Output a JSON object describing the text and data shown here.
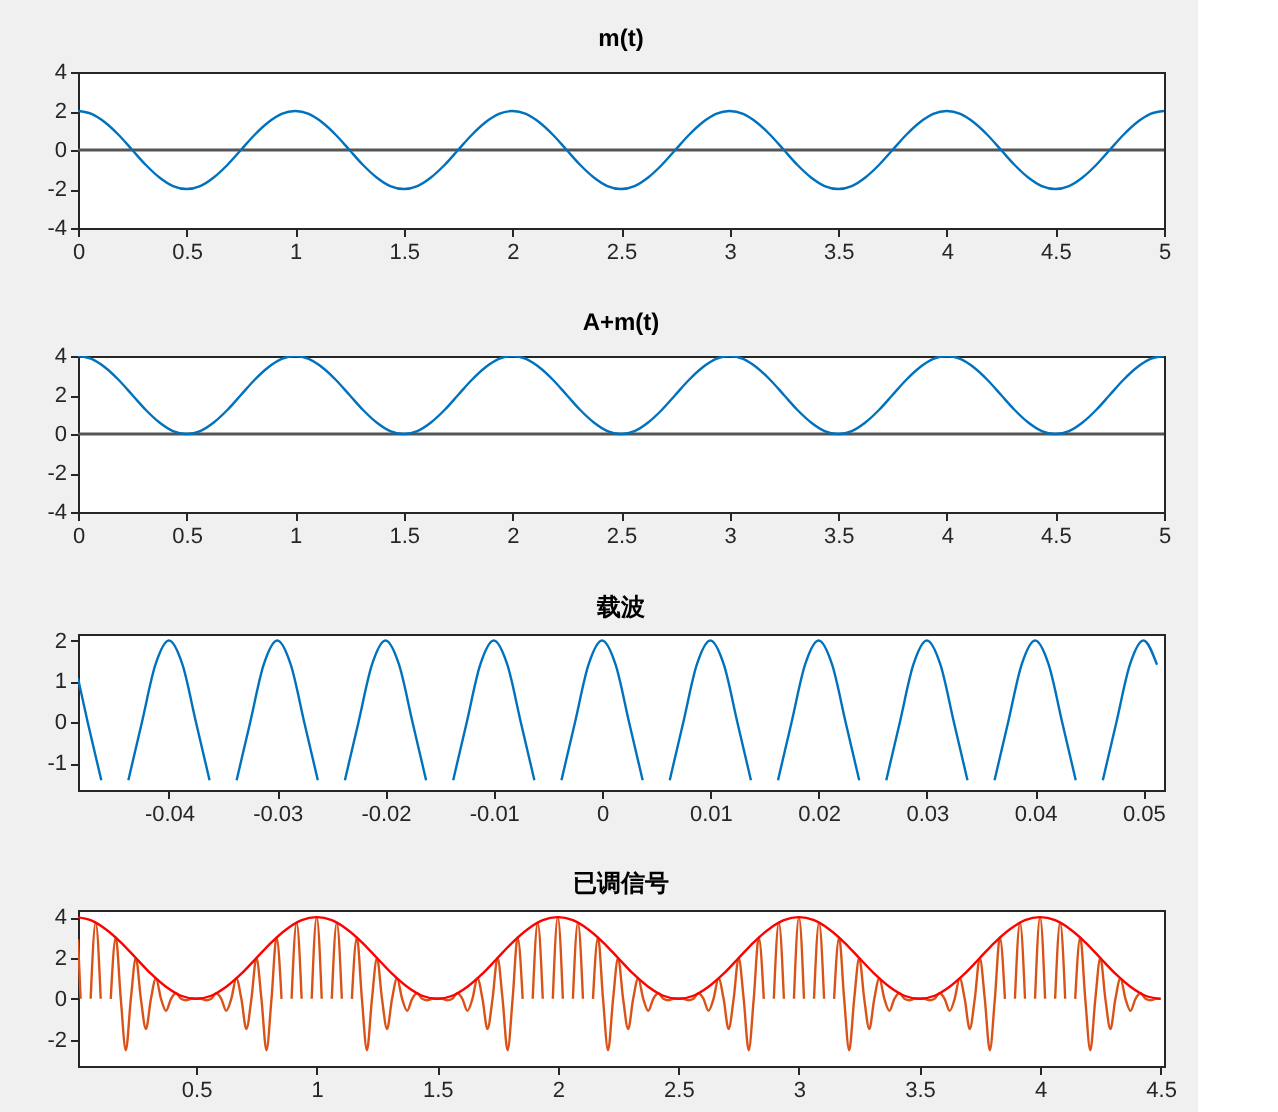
{
  "chart_data": [
    {
      "type": "line",
      "title": "m(t)",
      "xlim": [
        0,
        5
      ],
      "ylim": [
        -4,
        4
      ],
      "xticks": [
        0,
        0.5,
        1,
        1.5,
        2,
        2.5,
        3,
        3.5,
        4,
        4.5,
        5
      ],
      "yticks": [
        -4,
        -2,
        0,
        2,
        4
      ],
      "grid": false,
      "x": [
        0,
        0.0625,
        0.125,
        0.1875,
        0.25,
        0.3125,
        0.375,
        0.4375,
        0.5,
        0.5625,
        0.625,
        0.6875,
        0.75,
        0.8125,
        0.875,
        0.9375,
        1,
        1.0625,
        1.125,
        1.1875,
        1.25,
        1.3125,
        1.375,
        1.4375,
        1.5,
        1.5625,
        1.625,
        1.6875,
        1.75,
        1.8125,
        1.875,
        1.9375,
        2,
        2.0625,
        2.125,
        2.1875,
        2.25,
        2.3125,
        2.375,
        2.4375,
        2.5,
        2.5625,
        2.625,
        2.6875,
        2.75,
        2.8125,
        2.875,
        2.9375,
        3,
        3.0625,
        3.125,
        3.1875,
        3.25,
        3.3125,
        3.375,
        3.4375,
        3.5,
        3.5625,
        3.625,
        3.6875,
        3.75,
        3.8125,
        3.875,
        3.9375,
        4,
        4.0625,
        4.125,
        4.1875,
        4.25,
        4.3125,
        4.375,
        4.4375,
        4.5,
        4.5625,
        4.625,
        4.6875,
        4.75,
        4.8125,
        4.875,
        4.9375,
        5
      ],
      "series": [
        {
          "color": "#0072bd",
          "values": [
            2,
            1.85,
            1.41,
            0.77,
            0,
            -0.77,
            -1.41,
            -1.85,
            -2,
            -1.85,
            -1.41,
            -0.77,
            0,
            0.77,
            1.41,
            1.85,
            2,
            1.85,
            1.41,
            0.77,
            0,
            -0.77,
            -1.41,
            -1.85,
            -2,
            -1.85,
            -1.41,
            -0.77,
            0,
            0.77,
            1.41,
            1.85,
            2,
            1.85,
            1.41,
            0.77,
            0,
            -0.77,
            -1.41,
            -1.85,
            -2,
            -1.85,
            -1.41,
            -0.77,
            0,
            0.77,
            1.41,
            1.85,
            2,
            1.85,
            1.41,
            0.77,
            0,
            -0.77,
            -1.41,
            -1.85,
            -2,
            -1.85,
            -1.41,
            -0.77,
            0,
            0.77,
            1.41,
            1.85,
            2,
            1.85,
            1.41,
            0.77,
            0,
            -0.77,
            -1.41,
            -1.85,
            -2,
            -1.85,
            -1.41,
            -0.77,
            0,
            0.77,
            1.41,
            1.85,
            2
          ]
        }
      ],
      "ref_lines": [
        {
          "axis": "y",
          "value": 0,
          "color": "#555555"
        }
      ]
    },
    {
      "type": "line",
      "title": "A+m(t)",
      "xlim": [
        0,
        5
      ],
      "ylim": [
        -4,
        4
      ],
      "xticks": [
        0,
        0.5,
        1,
        1.5,
        2,
        2.5,
        3,
        3.5,
        4,
        4.5,
        5
      ],
      "yticks": [
        -4,
        -2,
        0,
        2,
        4
      ],
      "grid": false,
      "x": [
        0,
        0.0625,
        0.125,
        0.1875,
        0.25,
        0.3125,
        0.375,
        0.4375,
        0.5,
        0.5625,
        0.625,
        0.6875,
        0.75,
        0.8125,
        0.875,
        0.9375,
        1,
        1.0625,
        1.125,
        1.1875,
        1.25,
        1.3125,
        1.375,
        1.4375,
        1.5,
        1.5625,
        1.625,
        1.6875,
        1.75,
        1.8125,
        1.875,
        1.9375,
        2,
        2.0625,
        2.125,
        2.1875,
        2.25,
        2.3125,
        2.375,
        2.4375,
        2.5,
        2.5625,
        2.625,
        2.6875,
        2.75,
        2.8125,
        2.875,
        2.9375,
        3,
        3.0625,
        3.125,
        3.1875,
        3.25,
        3.3125,
        3.375,
        3.4375,
        3.5,
        3.5625,
        3.625,
        3.6875,
        3.75,
        3.8125,
        3.875,
        3.9375,
        4,
        4.0625,
        4.125,
        4.1875,
        4.25,
        4.3125,
        4.375,
        4.4375,
        4.5,
        4.5625,
        4.625,
        4.6875,
        4.75,
        4.8125,
        4.875,
        4.9375,
        5
      ],
      "series": [
        {
          "color": "#0072bd",
          "values": [
            4,
            3.85,
            3.41,
            2.77,
            2,
            1.23,
            0.59,
            0.15,
            0,
            0.15,
            0.59,
            1.23,
            2,
            2.77,
            3.41,
            3.85,
            4,
            3.85,
            3.41,
            2.77,
            2,
            1.23,
            0.59,
            0.15,
            0,
            0.15,
            0.59,
            1.23,
            2,
            2.77,
            3.41,
            3.85,
            4,
            3.85,
            3.41,
            2.77,
            2,
            1.23,
            0.59,
            0.15,
            0,
            0.15,
            0.59,
            1.23,
            2,
            2.77,
            3.41,
            3.85,
            4,
            3.85,
            3.41,
            2.77,
            2,
            1.23,
            0.59,
            0.15,
            0,
            0.15,
            0.59,
            1.23,
            2,
            2.77,
            3.41,
            3.85,
            4,
            3.85,
            3.41,
            2.77,
            2,
            1.23,
            0.59,
            0.15,
            0,
            0.15,
            0.59,
            1.23,
            2,
            2.77,
            3.41,
            3.85,
            4
          ]
        }
      ],
      "ref_lines": [
        {
          "axis": "y",
          "value": 0,
          "color": "#555555"
        }
      ]
    },
    {
      "type": "line",
      "title": "载波",
      "xlim": [
        -0.0484,
        0.0519
      ],
      "ylim": [
        -1.65,
        2.16
      ],
      "xticks": [
        -0.04,
        -0.03,
        -0.02,
        -0.01,
        0,
        0.01,
        0.02,
        0.03,
        0.04,
        0.05
      ],
      "yticks": [
        -1,
        0,
        1,
        2
      ],
      "grid": false,
      "x": [
        -0.0484,
        -0.0475,
        -0.04625,
        -0.045,
        -0.04375,
        -0.0425,
        -0.04125,
        -0.04,
        -0.03875,
        -0.0375,
        -0.03625,
        -0.035,
        -0.03375,
        -0.0325,
        -0.03125,
        -0.03,
        -0.02875,
        -0.0275,
        -0.02625,
        -0.025,
        -0.02375,
        -0.0225,
        -0.02125,
        -0.02,
        -0.01875,
        -0.0175,
        -0.01625,
        -0.015,
        -0.01375,
        -0.0125,
        -0.01125,
        -0.01,
        -0.00875,
        -0.0075,
        -0.00625,
        -0.005,
        -0.00375,
        -0.0025,
        -0.00125,
        0,
        0.00125,
        0.0025,
        0.00375,
        0.005,
        0.00625,
        0.0075,
        0.00875,
        0.01,
        0.01125,
        0.0125,
        0.01375,
        0.015,
        0.01625,
        0.0175,
        0.01875,
        0.02,
        0.02125,
        0.0225,
        0.02375,
        0.025,
        0.02625,
        0.0275,
        0.02875,
        0.03,
        0.03125,
        0.0325,
        0.03375,
        0.035,
        0.03625,
        0.0375,
        0.03875,
        0.04,
        0.04125,
        0.0425,
        0.04375,
        0.045,
        0.04625,
        0.0475,
        0.04875,
        0.05,
        0.05125
      ],
      "series": [
        {
          "color": "#0072bd",
          "values": [
            1.08,
            0,
            -1.41,
            null,
            -1.41,
            0,
            1.41,
            2,
            1.41,
            0,
            -1.41,
            null,
            -1.41,
            0,
            1.41,
            2,
            1.41,
            0,
            -1.41,
            null,
            -1.41,
            0,
            1.41,
            2,
            1.41,
            0,
            -1.41,
            null,
            -1.41,
            0,
            1.41,
            2,
            1.41,
            0,
            -1.41,
            null,
            -1.41,
            0,
            1.41,
            2,
            1.41,
            0,
            -1.41,
            null,
            -1.41,
            0,
            1.41,
            2,
            1.41,
            0,
            -1.41,
            null,
            -1.41,
            0,
            1.41,
            2,
            1.41,
            0,
            -1.41,
            null,
            -1.41,
            0,
            1.41,
            2,
            1.41,
            0,
            -1.41,
            null,
            -1.41,
            0,
            1.41,
            2,
            1.41,
            0,
            -1.41,
            null,
            -1.41,
            0,
            1.41,
            2,
            1.41
          ]
        }
      ]
    },
    {
      "type": "line",
      "title": "已调信号",
      "xlim": [
        0.01,
        4.514
      ],
      "ylim": [
        -3.29,
        4.35
      ],
      "xticks": [
        0.5,
        1,
        1.5,
        2,
        2.5,
        3,
        3.5,
        4,
        4.5
      ],
      "yticks": [
        -2,
        0,
        2,
        4
      ],
      "grid": false,
      "series": [
        {
          "color": "#d95319",
          "x": [
            0.01,
            0.0208,
            0.0417,
            0.0625,
            0.0833,
            0.1042,
            0.125,
            0.1458,
            0.1667,
            0.1875,
            0.2083,
            0.2292,
            0.25,
            0.2708,
            0.2917,
            0.3125,
            0.3333,
            0.3542,
            0.375,
            0.3958,
            0.4167,
            0.4375,
            0.4583,
            0.4792,
            0.5,
            0.5208,
            0.5417,
            0.5625,
            0.5833,
            0.6042,
            0.625,
            0.6458,
            0.6667,
            0.6875,
            0.7083,
            0.7292,
            0.75,
            0.7708,
            0.7917,
            0.8125,
            0.8333,
            0.8542,
            0.875,
            0.8958,
            0.9167,
            0.9375,
            0.9583,
            0.9792,
            1,
            1.0208,
            1.0417,
            1.0625,
            1.0833,
            1.1042,
            1.125,
            1.1458,
            1.1667,
            1.1875,
            1.2083,
            1.2292,
            1.25,
            1.2708,
            1.2917,
            1.3125,
            1.3333,
            1.3542,
            1.375,
            1.3958,
            1.4167,
            1.4375,
            1.4583,
            1.4792,
            1.5,
            1.5208,
            1.5417,
            1.5625,
            1.5833,
            1.6042,
            1.625,
            1.6458,
            1.6667,
            1.6875,
            1.7083,
            1.7292,
            1.75,
            1.7708,
            1.7917,
            1.8125,
            1.8333,
            1.8542,
            1.875,
            1.8958,
            1.9167,
            1.9375,
            1.9583,
            1.9792,
            2,
            2.0208,
            2.0417,
            2.0625,
            2.0833,
            2.1042,
            2.125,
            2.1458,
            2.1667,
            2.1875,
            2.2083,
            2.2292,
            2.25,
            2.2708,
            2.2917,
            2.3125,
            2.3333,
            2.3542,
            2.375,
            2.3958,
            2.4167,
            2.4375,
            2.4583,
            2.4792,
            2.5,
            2.5208,
            2.5417,
            2.5625,
            2.5833,
            2.6042,
            2.625,
            2.6458,
            2.6667,
            2.6875,
            2.7083,
            2.7292,
            2.75,
            2.7708,
            2.7917,
            2.8125,
            2.8333,
            2.8542,
            2.875,
            2.8958,
            2.9167,
            2.9375,
            2.9583,
            2.9792,
            3,
            3.0208,
            3.0417,
            3.0625,
            3.0833,
            3.1042,
            3.125,
            3.1458,
            3.1667,
            3.1875,
            3.2083,
            3.2292,
            3.25,
            3.2708,
            3.2917,
            3.3125,
            3.3333,
            3.3542,
            3.375,
            3.3958,
            3.4167,
            3.4375,
            3.4583,
            3.4792,
            3.5,
            3.5208,
            3.5417,
            3.5625,
            3.5833,
            3.6042,
            3.625,
            3.6458,
            3.6667,
            3.6875,
            3.7083,
            3.7292,
            3.75,
            3.7708,
            3.7917,
            3.8125,
            3.8333,
            3.8542,
            3.875,
            3.8958,
            3.9167,
            3.9375,
            3.9583,
            3.9792,
            4,
            4.0208,
            4.0417,
            4.0625,
            4.0833,
            4.1042,
            4.125,
            4.1458,
            4.1667,
            4.1875,
            4.2083,
            4.2292,
            4.25,
            4.2708,
            4.2917,
            4.3125,
            4.3333,
            4.3542,
            4.375,
            4.3958,
            4.4167,
            4.4375,
            4.4583,
            4.4792,
            4.5
          ],
          "values": [
            2.91,
            0,
            null,
            0,
            3.73,
            0,
            null,
            0,
            3,
            0,
            -2.52,
            0,
            2,
            0,
            -1.48,
            0,
            1,
            0,
            -0.59,
            0,
            0.27,
            0,
            -0.07,
            0,
            0,
            0,
            -0.07,
            0,
            0.27,
            0,
            -0.59,
            0,
            1,
            0,
            -1.48,
            0,
            2,
            0,
            -2.52,
            0,
            3,
            0,
            null,
            0,
            3.73,
            0,
            null,
            0,
            4,
            0,
            null,
            0,
            3.73,
            0,
            null,
            0,
            3,
            0,
            -2.52,
            0,
            2,
            0,
            -1.48,
            0,
            1,
            0,
            -0.59,
            0,
            0.27,
            0,
            -0.07,
            0,
            0,
            0,
            -0.07,
            0,
            0.27,
            0,
            -0.59,
            0,
            1,
            0,
            -1.48,
            0,
            2,
            0,
            -2.52,
            0,
            3,
            0,
            null,
            0,
            3.73,
            0,
            null,
            0,
            4,
            0,
            null,
            0,
            3.73,
            0,
            null,
            0,
            3,
            0,
            -2.52,
            0,
            2,
            0,
            -1.48,
            0,
            1,
            0,
            -0.59,
            0,
            0.27,
            0,
            -0.07,
            0,
            0,
            0,
            -0.07,
            0,
            0.27,
            0,
            -0.59,
            0,
            1,
            0,
            -1.48,
            0,
            2,
            0,
            -2.52,
            0,
            3,
            0,
            null,
            0,
            3.73,
            0,
            null,
            0,
            4,
            0,
            null,
            0,
            3.73,
            0,
            null,
            0,
            3,
            0,
            -2.52,
            0,
            2,
            0,
            -1.48,
            0,
            1,
            0,
            -0.59,
            0,
            0.27,
            0,
            -0.07,
            0,
            0,
            0,
            -0.07,
            0,
            0.27,
            0,
            -0.59,
            0,
            1,
            0,
            -1.48,
            0,
            2,
            0,
            -2.52,
            0,
            3,
            0,
            null,
            0,
            3.73,
            0,
            null,
            0,
            4,
            0,
            null,
            0,
            3.73,
            0,
            null,
            0,
            3,
            0,
            -2.52,
            0,
            2,
            0,
            -1.48,
            0,
            1,
            0,
            -0.59,
            0,
            0.27,
            0,
            -0.07,
            0,
            0
          ]
        },
        {
          "color": "#ff0000",
          "x": [
            0.01,
            0.0625,
            0.125,
            0.1875,
            0.25,
            0.3125,
            0.375,
            0.4375,
            0.5,
            0.5625,
            0.625,
            0.6875,
            0.75,
            0.8125,
            0.875,
            0.9375,
            1,
            1.0625,
            1.125,
            1.1875,
            1.25,
            1.3125,
            1.375,
            1.4375,
            1.5,
            1.5625,
            1.625,
            1.6875,
            1.75,
            1.8125,
            1.875,
            1.9375,
            2,
            2.0625,
            2.125,
            2.1875,
            2.25,
            2.3125,
            2.375,
            2.4375,
            2.5,
            2.5625,
            2.625,
            2.6875,
            2.75,
            2.8125,
            2.875,
            2.9375,
            3,
            3.0625,
            3.125,
            3.1875,
            3.25,
            3.3125,
            3.375,
            3.4375,
            3.5,
            3.5625,
            3.625,
            3.6875,
            3.75,
            3.8125,
            3.875,
            3.9375,
            4,
            4.0625,
            4.125,
            4.1875,
            4.25,
            4.3125,
            4.375,
            4.4375,
            4.5
          ],
          "values": [
            3.99,
            3.85,
            3.41,
            2.77,
            2,
            1.23,
            0.59,
            0.15,
            0,
            0.15,
            0.59,
            1.23,
            2,
            2.77,
            3.41,
            3.85,
            4,
            3.85,
            3.41,
            2.77,
            2,
            1.23,
            0.59,
            0.15,
            0,
            0.15,
            0.59,
            1.23,
            2,
            2.77,
            3.41,
            3.85,
            4,
            3.85,
            3.41,
            2.77,
            2,
            1.23,
            0.59,
            0.15,
            0,
            0.15,
            0.59,
            1.23,
            2,
            2.77,
            3.41,
            3.85,
            4,
            3.85,
            3.41,
            2.77,
            2,
            1.23,
            0.59,
            0.15,
            0,
            0.15,
            0.59,
            1.23,
            2,
            2.77,
            3.41,
            3.85,
            4,
            3.85,
            3.41,
            2.77,
            2,
            1.23,
            0.59,
            0.15,
            0
          ]
        }
      ]
    }
  ]
}
